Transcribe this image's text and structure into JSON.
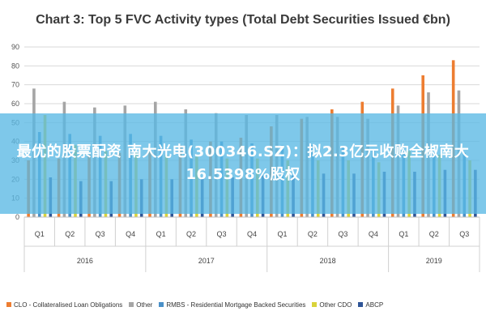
{
  "banner": {
    "headline": "最优的股票配资 南大光电(300346.SZ)：拟2.3亿元收购全椒南大16.5398%股权"
  },
  "chart_data": {
    "type": "bar",
    "title": "Chart 3: Top 5 FVC Activity types (Total Debt Securities Issued €bn)",
    "xlabel": "",
    "ylabel": "",
    "ylim": [
      0,
      90
    ],
    "yticks": [
      0,
      10,
      20,
      30,
      40,
      50,
      60,
      70,
      80,
      90
    ],
    "grid": true,
    "legend_position": "bottom",
    "categories": [
      "Q1",
      "Q2",
      "Q3",
      "Q4",
      "Q1",
      "Q2",
      "Q3",
      "Q4",
      "Q1",
      "Q2",
      "Q3",
      "Q4",
      "Q1",
      "Q2",
      "Q3"
    ],
    "years": [
      {
        "label": "2016",
        "span": 4
      },
      {
        "label": "2017",
        "span": 4
      },
      {
        "label": "2018",
        "span": 4
      },
      {
        "label": "2019",
        "span": 3
      }
    ],
    "series": [
      {
        "name": "CLO - Collateralised Loan Obligations",
        "color": "#ed7d31",
        "values": [
          30,
          31,
          33,
          34,
          35,
          38,
          40,
          42,
          48,
          52,
          57,
          61,
          68,
          75,
          83
        ]
      },
      {
        "name": "Other",
        "color": "#a5a5a5",
        "values": [
          68,
          61,
          58,
          59,
          61,
          57,
          55,
          54,
          54,
          53,
          53,
          52,
          59,
          66,
          67
        ]
      },
      {
        "name": "RMBS - Residential Mortgage Backed Securities",
        "color": "#4a90c8",
        "values": [
          45,
          44,
          43,
          44,
          43,
          41,
          40,
          39,
          38,
          38,
          37,
          36,
          35,
          34,
          34
        ]
      },
      {
        "name": "Other CDO",
        "color": "#d9d33a",
        "values": [
          54,
          38,
          35,
          34,
          33,
          32,
          31,
          31,
          30,
          30,
          30,
          29,
          35,
          33,
          30
        ]
      },
      {
        "name": "ABCP",
        "color": "#2f5597",
        "values": [
          21,
          19,
          19,
          20,
          20,
          21,
          21,
          22,
          22,
          23,
          23,
          24,
          24,
          25,
          25
        ]
      }
    ]
  }
}
